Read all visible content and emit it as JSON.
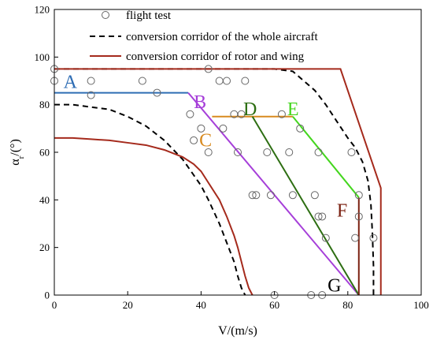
{
  "chart_data": {
    "type": "scatter",
    "xlabel": "V/(m/s)",
    "ylabel": "α_r/(°)",
    "ylabel_main": "α",
    "ylabel_sub": "r",
    "ylabel_rest": "/(°)",
    "xlim": [
      0,
      100
    ],
    "ylim": [
      0,
      120
    ],
    "xticks": [
      "0",
      "20",
      "40",
      "60",
      "80",
      "100"
    ],
    "yticks": [
      "0",
      "20",
      "40",
      "60",
      "80",
      "100",
      "120"
    ],
    "xtick_values": [
      0,
      20,
      40,
      60,
      80,
      100
    ],
    "ytick_values": [
      0,
      20,
      40,
      60,
      80,
      100,
      120
    ],
    "grid": false,
    "legend_position": "top-right",
    "legend": [
      {
        "label": "flight test",
        "style": "marker"
      },
      {
        "label": "conversion corridor of the whole aircraft",
        "style": "dashed",
        "color": "#000000"
      },
      {
        "label": "conversion corridor of rotor and wing",
        "style": "solid",
        "color": "#a52a1c"
      }
    ],
    "flight_test": {
      "x": [
        0,
        0,
        10,
        10,
        24,
        28,
        37,
        40,
        38,
        42,
        42,
        45,
        47,
        49,
        46,
        51,
        50,
        52,
        55,
        54,
        58,
        59,
        62,
        60,
        64,
        65,
        67,
        72,
        71,
        72,
        74,
        73,
        81,
        83,
        83,
        87,
        73,
        70,
        82
      ],
      "y": [
        95,
        90,
        90,
        84,
        90,
        85,
        76,
        70,
        65,
        60,
        95,
        90,
        90,
        76,
        70,
        76,
        60,
        90,
        42,
        42,
        60,
        42,
        76,
        0,
        60,
        42,
        70,
        60,
        42,
        33,
        24,
        0,
        60,
        42,
        33,
        24,
        33,
        0,
        24
      ]
    },
    "whole_aircraft_outer": {
      "x": [
        0,
        15,
        25,
        38,
        60,
        65,
        68,
        71,
        74,
        77,
        80,
        82,
        84,
        85.5,
        86.3,
        86.7,
        87,
        87
      ],
      "y": [
        95,
        95,
        95,
        95,
        95,
        94,
        90,
        86,
        80,
        73,
        66,
        62,
        56,
        48,
        38,
        26,
        12,
        0
      ]
    },
    "whole_aircraft_inner": {
      "x": [
        0,
        5,
        10,
        15,
        20,
        25,
        30,
        35,
        40,
        42,
        45,
        47,
        49,
        50,
        51,
        52
      ],
      "y": [
        80,
        80,
        79,
        78,
        75,
        71,
        65,
        57,
        46,
        40,
        30,
        22,
        14,
        8,
        3,
        0
      ]
    },
    "rotor_wing_outer": {
      "x": [
        0,
        15,
        30,
        50,
        65,
        78,
        89,
        89
      ],
      "y": [
        95,
        95,
        95,
        95,
        95,
        95,
        45,
        0
      ]
    },
    "rotor_wing_inner": {
      "x": [
        0,
        5,
        10,
        15,
        20,
        25,
        30,
        35,
        38,
        40,
        45,
        47,
        49,
        50,
        51,
        52,
        53,
        54
      ],
      "y": [
        66,
        66,
        65.5,
        65,
        64,
        63,
        61,
        58,
        55,
        52,
        40,
        33,
        25,
        20,
        14,
        8,
        3,
        0
      ]
    },
    "segments": [
      {
        "name": "A",
        "color": "#2e6db4",
        "x": [
          0,
          36.5
        ],
        "y": [
          85,
          85
        ]
      },
      {
        "name": "B",
        "color": "#a63fd9",
        "x": [
          36.5,
          83
        ],
        "y": [
          85,
          0
        ]
      },
      {
        "name": "C",
        "color": "#d88a1f",
        "x": [
          43,
          65
        ],
        "y": [
          75,
          75
        ]
      },
      {
        "name": "D",
        "color": "#2d6e12",
        "x": [
          54,
          83
        ],
        "y": [
          75,
          0
        ]
      },
      {
        "name": "E",
        "color": "#44d61e",
        "x": [
          65,
          83
        ],
        "y": [
          75,
          41
        ]
      },
      {
        "name": "F",
        "color": "#7a2010",
        "x": [
          83,
          83
        ],
        "y": [
          41,
          0
        ]
      }
    ],
    "point_labels": [
      {
        "text": "A",
        "x": 2.5,
        "y": 87,
        "color": "#2e6db4"
      },
      {
        "text": "B",
        "x": 38,
        "y": 78.5,
        "color": "#a63fd9"
      },
      {
        "text": "C",
        "x": 39.5,
        "y": 62.5,
        "color": "#d88a1f"
      },
      {
        "text": "D",
        "x": 51.5,
        "y": 75.5,
        "color": "#2d6e12"
      },
      {
        "text": "E",
        "x": 63.5,
        "y": 75.5,
        "color": "#44d61e"
      },
      {
        "text": "F",
        "x": 77,
        "y": 33,
        "color": "#7a2010"
      },
      {
        "text": "G",
        "x": 74.5,
        "y": 1.5,
        "color": "#000000"
      }
    ]
  }
}
